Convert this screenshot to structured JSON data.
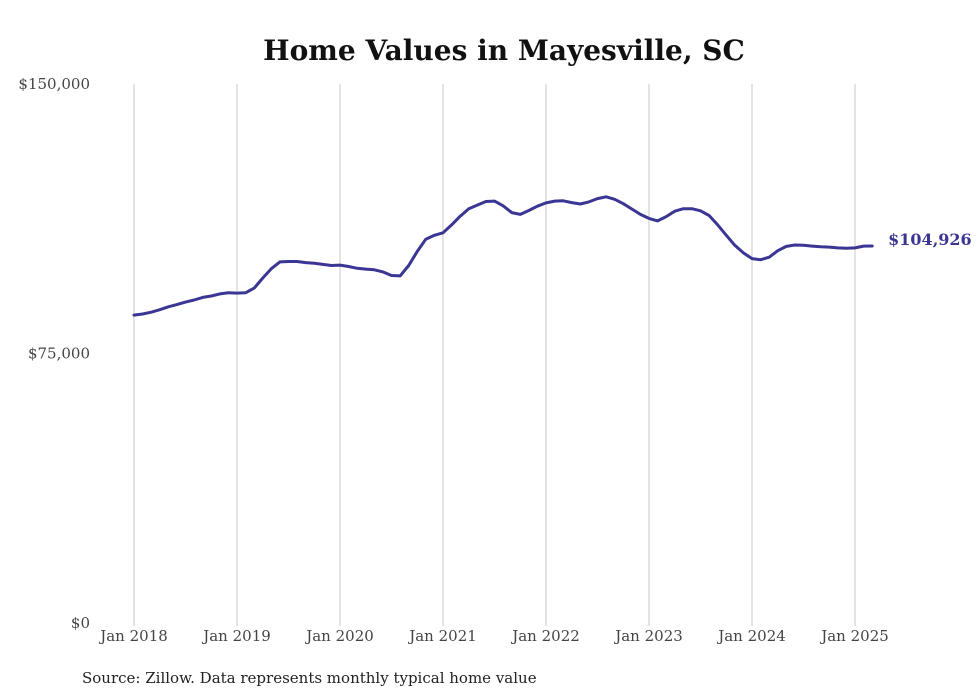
{
  "chart_data": {
    "type": "line",
    "title": "Home Values in Mayesville, SC",
    "source": "Source: Zillow. Data represents monthly typical home value",
    "ylim": [
      0,
      150000
    ],
    "y_ticks": [
      {
        "value": 0,
        "label": "$0"
      },
      {
        "value": 75000,
        "label": "$75,000"
      },
      {
        "value": 150000,
        "label": "$150,000"
      }
    ],
    "x_ticks": [
      {
        "value": "2018-01",
        "label": "Jan 2018"
      },
      {
        "value": "2019-01",
        "label": "Jan 2019"
      },
      {
        "value": "2020-01",
        "label": "Jan 2020"
      },
      {
        "value": "2021-01",
        "label": "Jan 2021"
      },
      {
        "value": "2022-01",
        "label": "Jan 2022"
      },
      {
        "value": "2023-01",
        "label": "Jan 2023"
      },
      {
        "value": "2024-01",
        "label": "Jan 2024"
      },
      {
        "value": "2025-01",
        "label": "Jan 2025"
      }
    ],
    "grid": "vertical at year ticks",
    "color": "#3b3594",
    "end_label": "$104,926",
    "series": [
      {
        "x": [
          "2018-01",
          "2018-02",
          "2018-03",
          "2018-04",
          "2018-05",
          "2018-06",
          "2018-07",
          "2018-08",
          "2018-09",
          "2018-10",
          "2018-11",
          "2018-12",
          "2019-01",
          "2019-02",
          "2019-03",
          "2019-04",
          "2019-05",
          "2019-06",
          "2019-07",
          "2019-08",
          "2019-09",
          "2019-10",
          "2019-11",
          "2019-12",
          "2020-01",
          "2020-02",
          "2020-03",
          "2020-04",
          "2020-05",
          "2020-06",
          "2020-07",
          "2020-08",
          "2020-09",
          "2020-10",
          "2020-11",
          "2020-12",
          "2021-01",
          "2021-02",
          "2021-03",
          "2021-04",
          "2021-05",
          "2021-06",
          "2021-07",
          "2021-08",
          "2021-09",
          "2021-10",
          "2021-11",
          "2021-12",
          "2022-01",
          "2022-02",
          "2022-03",
          "2022-04",
          "2022-05",
          "2022-06",
          "2022-07",
          "2022-08",
          "2022-09",
          "2022-10",
          "2022-11",
          "2022-12",
          "2023-01",
          "2023-02",
          "2023-03",
          "2023-04",
          "2023-05",
          "2023-06",
          "2023-07",
          "2023-08",
          "2023-09",
          "2023-10",
          "2023-11",
          "2023-12",
          "2024-01",
          "2024-02",
          "2024-03",
          "2024-04",
          "2024-05",
          "2024-06",
          "2024-07",
          "2024-08",
          "2024-09",
          "2024-10",
          "2024-11",
          "2024-12",
          "2025-01",
          "2025-02",
          "2025-03"
        ],
        "values": [
          85700,
          86000,
          86500,
          87200,
          88000,
          88600,
          89300,
          89900,
          90600,
          91000,
          91600,
          91900,
          91800,
          91900,
          93200,
          96000,
          98600,
          100500,
          100600,
          100600,
          100300,
          100100,
          99800,
          99500,
          99600,
          99200,
          98700,
          98500,
          98300,
          97700,
          96700,
          96600,
          99500,
          103400,
          106800,
          107900,
          108600,
          110800,
          113200,
          115300,
          116300,
          117300,
          117400,
          116100,
          114200,
          113700,
          114800,
          116000,
          116900,
          117400,
          117500,
          117000,
          116600,
          117200,
          118100,
          118600,
          117900,
          116700,
          115200,
          113700,
          112600,
          111900,
          113100,
          114600,
          115300,
          115300,
          114700,
          113400,
          110800,
          107900,
          105100,
          103000,
          101400,
          101100,
          101800,
          103600,
          104800,
          105200,
          105100,
          104900,
          104700,
          104600,
          104400,
          104300,
          104400,
          104900,
          104926
        ]
      }
    ]
  }
}
